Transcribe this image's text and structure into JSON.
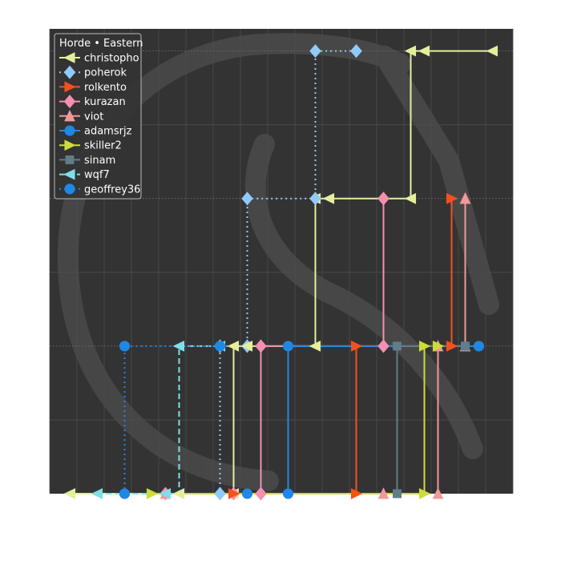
{
  "chart_data": {
    "type": "line",
    "subtype": "bracket-stepped",
    "title": "",
    "xlabel": "",
    "ylabel": "",
    "xlim": [
      0,
      34
    ],
    "ylim": [
      0,
      3.15
    ],
    "grid": true,
    "background": "#333333",
    "watermark": "skull",
    "legend": {
      "title": "Horde • Eastern",
      "placement": "top-left"
    },
    "series": [
      {
        "name": "christopho",
        "color": "#e6ee9c",
        "dash": "solid",
        "marker": "triangle-left",
        "segments": [
          [
            [
              1.5,
              0
            ],
            [
              13.5,
              0
            ],
            [
              13.5,
              1
            ],
            [
              19.5,
              1
            ],
            [
              19.5,
              2
            ],
            [
              26.5,
              2
            ],
            [
              26.5,
              3
            ],
            [
              32.5,
              3
            ]
          ]
        ]
      },
      {
        "name": "poherok",
        "color": "#90caf9",
        "dash": "dotted",
        "marker": "diamond",
        "segments": [
          [
            [
              12.5,
              0
            ],
            [
              12.5,
              1
            ],
            [
              14.5,
              1
            ],
            [
              14.5,
              2
            ],
            [
              19.5,
              2
            ],
            [
              19.5,
              3
            ],
            [
              22.5,
              3
            ]
          ]
        ]
      },
      {
        "name": "rolkento",
        "color": "#f4511e",
        "dash": "solid",
        "marker": "triangle-right",
        "segments": [
          [
            [
              22.5,
              0
            ],
            [
              22.5,
              1
            ],
            [
              29.5,
              1
            ],
            [
              29.5,
              2
            ]
          ]
        ]
      },
      {
        "name": "kurazan",
        "color": "#f48fb1",
        "dash": "solid",
        "marker": "diamond",
        "segments": [
          [
            [
              15.5,
              0
            ],
            [
              15.5,
              1
            ],
            [
              24.5,
              1
            ],
            [
              24.5,
              2
            ]
          ]
        ]
      },
      {
        "name": "viot",
        "color": "#ef9a9a",
        "dash": "solid",
        "marker": "triangle-up",
        "segments": [
          [
            [
              28.5,
              0
            ],
            [
              28.5,
              1
            ],
            [
              30.5,
              1
            ],
            [
              30.5,
              2
            ]
          ]
        ]
      },
      {
        "name": "adamsrjz",
        "color": "#1e88e5",
        "dash": "solid",
        "marker": "circle",
        "segments": [
          [
            [
              17.5,
              0
            ],
            [
              17.5,
              1
            ],
            [
              31.5,
              1
            ]
          ]
        ]
      },
      {
        "name": "skiller2",
        "color": "#cddc39",
        "dash": "solid",
        "marker": "triangle-right",
        "segments": [
          [
            [
              7.5,
              0
            ],
            [
              27.5,
              0
            ],
            [
              27.5,
              1
            ],
            [
              28.5,
              1
            ]
          ]
        ]
      },
      {
        "name": "sinam",
        "color": "#607d8b",
        "dash": "solid",
        "marker": "square",
        "segments": [
          [
            [
              25.5,
              0
            ],
            [
              25.5,
              1
            ],
            [
              30.5,
              1
            ]
          ]
        ]
      },
      {
        "name": "wqf7",
        "color": "#80deea",
        "dash": "dashed",
        "marker": "triangle-left",
        "segments": [
          [
            [
              3.5,
              0
            ],
            [
              9.5,
              0
            ],
            [
              9.5,
              1
            ],
            [
              12.5,
              1
            ]
          ]
        ]
      },
      {
        "name": "geoffrey36",
        "color": "#1e88e5",
        "dash": "dotted",
        "marker": "circle",
        "segments": [
          [
            [
              5.5,
              0
            ],
            [
              5.5,
              1
            ],
            [
              12.5,
              1
            ]
          ]
        ]
      }
    ],
    "extra_markers": [
      {
        "series": "kurazan",
        "x": 8.5,
        "y": 0
      },
      {
        "series": "kurazan",
        "x": 13.5,
        "y": 0
      },
      {
        "series": "kurazan",
        "x": 24.5,
        "y": 2
      },
      {
        "series": "viot",
        "x": 8.5,
        "y": 0
      },
      {
        "series": "viot",
        "x": 24.5,
        "y": 0
      },
      {
        "series": "viot",
        "x": 30.5,
        "y": 2
      },
      {
        "series": "adamsrjz",
        "x": 14.5,
        "y": 0
      },
      {
        "series": "adamsrjz",
        "x": 31.5,
        "y": 1
      },
      {
        "series": "sinam",
        "x": 30.5,
        "y": 1
      },
      {
        "series": "sinam",
        "x": 25.5,
        "y": 0
      },
      {
        "series": "rolkento",
        "x": 13.5,
        "y": 0
      },
      {
        "series": "rolkento",
        "x": 29.5,
        "y": 2
      },
      {
        "series": "geoffrey36",
        "x": 5.5,
        "y": 1
      },
      {
        "series": "geoffrey36",
        "x": 5.5,
        "y": 0
      },
      {
        "series": "wqf7",
        "x": 8.5,
        "y": 0
      },
      {
        "series": "christopho",
        "x": 9.5,
        "y": 0
      },
      {
        "series": "christopho",
        "x": 14.5,
        "y": 1
      },
      {
        "series": "christopho",
        "x": 20.5,
        "y": 2
      },
      {
        "series": "christopho",
        "x": 27.5,
        "y": 3
      },
      {
        "series": "poherok",
        "x": 22.5,
        "y": 3
      }
    ]
  }
}
